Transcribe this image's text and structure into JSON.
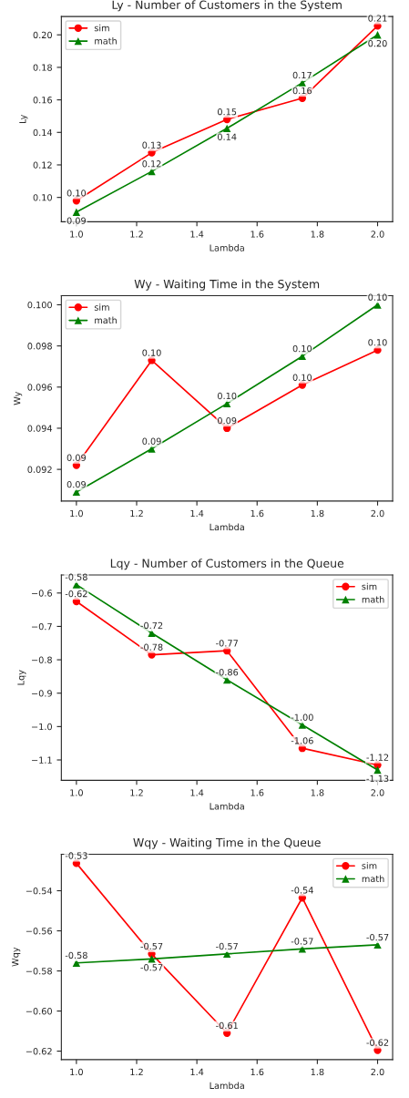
{
  "chart_data": [
    {
      "type": "line",
      "title": "Ly - Number of Customers in the System",
      "xlabel": "Lambda",
      "ylabel": "Ly",
      "x": [
        1.0,
        1.25,
        1.5,
        1.75,
        2.0
      ],
      "xlim": [
        0.95,
        2.05
      ],
      "xticks": [
        {
          "value": 1.0,
          "label": "1.0"
        },
        {
          "value": 1.2,
          "label": "1.2"
        },
        {
          "value": 1.4,
          "label": "1.4"
        },
        {
          "value": 1.6,
          "label": "1.6"
        },
        {
          "value": 1.8,
          "label": "1.8"
        },
        {
          "value": 2.0,
          "label": "2.0"
        }
      ],
      "ylim": [
        0.085,
        0.2113
      ],
      "yticks": [
        {
          "value": 0.1,
          "label": "0.10"
        },
        {
          "value": 0.12,
          "label": "0.12"
        },
        {
          "value": 0.14,
          "label": "0.14"
        },
        {
          "value": 0.16,
          "label": "0.16"
        },
        {
          "value": 0.18,
          "label": "0.18"
        },
        {
          "value": 0.2,
          "label": "0.20"
        }
      ],
      "legend": "top left",
      "grid": false,
      "series": [
        {
          "name": "sim",
          "color": "#ff0000",
          "marker": "circle",
          "values": [
            0.098,
            0.1275,
            0.148,
            0.161,
            0.2055
          ],
          "value_labels": [
            "0.10",
            "0.13",
            "0.15",
            "0.16",
            "0.21"
          ]
        },
        {
          "name": "math",
          "color": "#008000",
          "marker": "triangle",
          "values": [
            0.091,
            0.116,
            0.1425,
            0.1705,
            0.2
          ],
          "value_labels": [
            "0.09",
            "0.12",
            "0.14",
            "0.17",
            "0.20"
          ]
        }
      ]
    },
    {
      "type": "line",
      "title": "Wy - Waiting Time in the System",
      "xlabel": "Lambda",
      "ylabel": "Wy",
      "x": [
        1.0,
        1.25,
        1.5,
        1.75,
        2.0
      ],
      "xlim": [
        0.95,
        2.05
      ],
      "xticks": [
        {
          "value": 1.0,
          "label": "1.0"
        },
        {
          "value": 1.2,
          "label": "1.2"
        },
        {
          "value": 1.4,
          "label": "1.4"
        },
        {
          "value": 1.6,
          "label": "1.6"
        },
        {
          "value": 1.8,
          "label": "1.8"
        },
        {
          "value": 2.0,
          "label": "2.0"
        }
      ],
      "ylim": [
        0.09046,
        0.10044
      ],
      "yticks": [
        0.092,
        0.094,
        0.096,
        0.098,
        {
          "value": 0.1,
          "label": "0.100"
        }
      ],
      "legend": "top left",
      "grid": false,
      "series": [
        {
          "name": "sim",
          "color": "#ff0000",
          "marker": "circle",
          "values": [
            0.0922,
            0.0973,
            0.094,
            0.0961,
            0.0978
          ],
          "value_labels": [
            "0.09",
            "0.10",
            "0.09",
            "0.10",
            "0.10"
          ]
        },
        {
          "name": "math",
          "color": "#008000",
          "marker": "triangle",
          "values": [
            0.0909,
            0.093,
            0.0952,
            0.0975,
            0.1
          ],
          "value_labels": [
            "0.09",
            "0.09",
            "0.10",
            "0.10",
            "0.10"
          ]
        }
      ]
    },
    {
      "type": "line",
      "title": "Lqy - Number of Customers in the Queue",
      "xlabel": "Lambda",
      "ylabel": "Lqy",
      "x": [
        1.0,
        1.25,
        1.5,
        1.75,
        2.0
      ],
      "xlim": [
        0.95,
        2.05
      ],
      "xticks": [
        {
          "value": 1.0,
          "label": "1.0"
        },
        {
          "value": 1.2,
          "label": "1.2"
        },
        {
          "value": 1.4,
          "label": "1.4"
        },
        {
          "value": 1.6,
          "label": "1.6"
        },
        {
          "value": 1.8,
          "label": "1.8"
        },
        {
          "value": 2.0,
          "label": "2.0"
        }
      ],
      "ylim": [
        -1.161,
        -0.546
      ],
      "yticks": [
        {
          "value": -1.1,
          "label": "−1.1"
        },
        {
          "value": -1.0,
          "label": "−1.0"
        },
        {
          "value": -0.9,
          "label": "−0.9"
        },
        {
          "value": -0.8,
          "label": "−0.8"
        },
        {
          "value": -0.7,
          "label": "−0.7"
        },
        {
          "value": -0.6,
          "label": "−0.6"
        }
      ],
      "legend": "top right",
      "grid": false,
      "series": [
        {
          "name": "sim",
          "color": "#ff0000",
          "marker": "circle",
          "values": [
            -0.625,
            -0.785,
            -0.773,
            -1.065,
            -1.115
          ],
          "value_labels": [
            "-0.62",
            "-0.78",
            "-0.77",
            "-1.06",
            "-1.12"
          ]
        },
        {
          "name": "math",
          "color": "#008000",
          "marker": "triangle",
          "values": [
            -0.575,
            -0.72,
            -0.86,
            -0.995,
            -1.13
          ],
          "value_labels": [
            "-0.58",
            "-0.72",
            "-0.86",
            "-1.00",
            "-1.13"
          ]
        }
      ]
    },
    {
      "type": "line",
      "title": "Wqy - Waiting Time in the Queue",
      "xlabel": "Lambda",
      "ylabel": "Wqy",
      "x": [
        1.0,
        1.25,
        1.5,
        1.75,
        2.0
      ],
      "xlim": [
        0.95,
        2.05
      ],
      "xticks": [
        {
          "value": 1.0,
          "label": "1.0"
        },
        {
          "value": 1.2,
          "label": "1.2"
        },
        {
          "value": 1.4,
          "label": "1.4"
        },
        {
          "value": 1.6,
          "label": "1.6"
        },
        {
          "value": 1.8,
          "label": "1.8"
        },
        {
          "value": 2.0,
          "label": "2.0"
        }
      ],
      "ylim": [
        -0.6242,
        -0.5218
      ],
      "yticks": [
        {
          "value": -0.62,
          "label": "−0.62"
        },
        {
          "value": -0.6,
          "label": "−0.60"
        },
        {
          "value": -0.58,
          "label": "−0.58"
        },
        {
          "value": -0.56,
          "label": "−0.56"
        },
        {
          "value": -0.54,
          "label": "−0.54"
        }
      ],
      "legend": "top right",
      "grid": false,
      "series": [
        {
          "name": "sim",
          "color": "#ff0000",
          "marker": "circle",
          "values": [
            -0.5263,
            -0.5715,
            -0.611,
            -0.5435,
            -0.6195
          ],
          "value_labels": [
            "-0.53",
            "-0.57",
            "-0.61",
            "-0.54",
            "-0.62"
          ]
        },
        {
          "name": "math",
          "color": "#008000",
          "marker": "triangle",
          "values": [
            -0.576,
            -0.574,
            -0.5715,
            -0.569,
            -0.567
          ],
          "value_labels": [
            "-0.58",
            "-0.57",
            "-0.57",
            "-0.57",
            "-0.57"
          ]
        }
      ]
    }
  ]
}
